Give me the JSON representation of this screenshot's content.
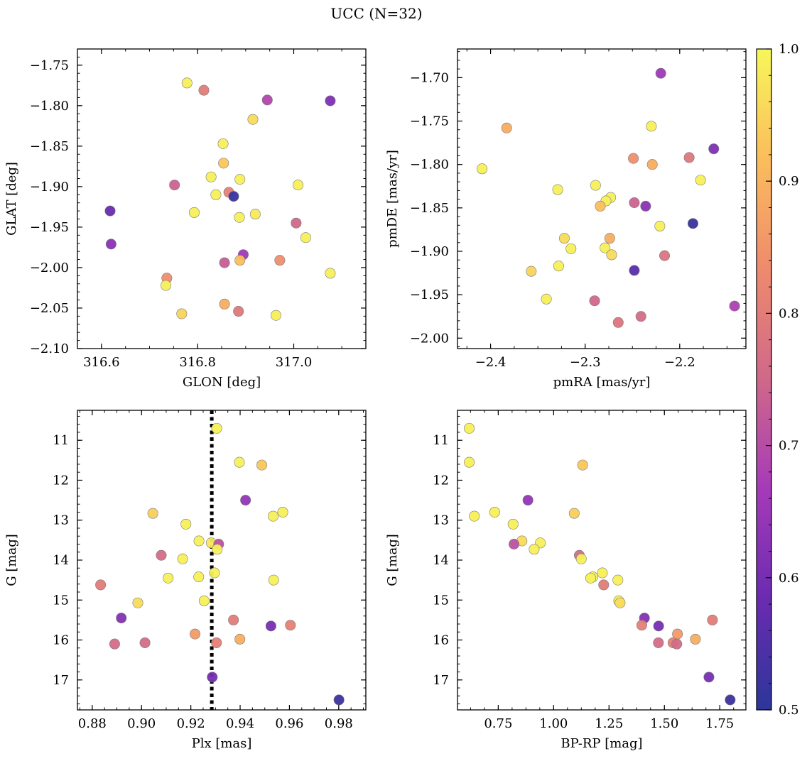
{
  "figure": {
    "title": "UCC (N=32)"
  },
  "colorbar": {
    "range": [
      0.5,
      1.0
    ],
    "ticks": [
      0.5,
      0.6,
      0.7,
      0.8,
      0.9,
      1.0
    ],
    "tick_labels": [
      "0.5",
      "0.6",
      "0.7",
      "0.8",
      "0.9",
      "1.0"
    ],
    "colormap": "plasma",
    "stops": [
      "#2c369a",
      "#6a2bb0",
      "#a53ab9",
      "#d0688a",
      "#ee8a6d",
      "#fbbd5c",
      "#f7f75a"
    ]
  },
  "chart_data": [
    {
      "type": "scatter",
      "xlabel": "GLON [deg]",
      "ylabel": "GLAT [deg]",
      "xlim": [
        316.55,
        317.15
      ],
      "ylim": [
        -2.1,
        -1.73
      ],
      "xticks": [
        316.6,
        316.8,
        317.0
      ],
      "xtick_labels": [
        "316.6",
        "316.8",
        "317.0"
      ],
      "yticks": [
        -1.75,
        -1.8,
        -1.85,
        -1.9,
        -1.95,
        -2.0,
        -2.05,
        -2.1
      ],
      "ytick_labels": [
        "−1.75",
        "−1.80",
        "−1.85",
        "−1.90",
        "−1.95",
        "−2.00",
        "−2.05",
        "−2.10"
      ],
      "y_inverted": false,
      "points": [
        {
          "x": 316.778,
          "y": -1.772,
          "c": 0.99
        },
        {
          "x": 316.813,
          "y": -1.781,
          "c": 0.8
        },
        {
          "x": 316.945,
          "y": -1.793,
          "c": 0.69
        },
        {
          "x": 317.076,
          "y": -1.794,
          "c": 0.61
        },
        {
          "x": 316.915,
          "y": -1.817,
          "c": 0.96
        },
        {
          "x": 316.853,
          "y": -1.847,
          "c": 0.99
        },
        {
          "x": 316.854,
          "y": -1.871,
          "c": 0.93
        },
        {
          "x": 316.828,
          "y": -1.888,
          "c": 0.99
        },
        {
          "x": 316.888,
          "y": -1.891,
          "c": 0.99
        },
        {
          "x": 316.752,
          "y": -1.898,
          "c": 0.74
        },
        {
          "x": 317.009,
          "y": -1.898,
          "c": 0.99
        },
        {
          "x": 316.865,
          "y": -1.907,
          "c": 0.81
        },
        {
          "x": 316.838,
          "y": -1.91,
          "c": 0.99
        },
        {
          "x": 316.875,
          "y": -1.912,
          "c": 0.52
        },
        {
          "x": 316.618,
          "y": -1.93,
          "c": 0.58
        },
        {
          "x": 316.793,
          "y": -1.932,
          "c": 0.99
        },
        {
          "x": 316.92,
          "y": -1.934,
          "c": 0.98
        },
        {
          "x": 316.887,
          "y": -1.938,
          "c": 0.99
        },
        {
          "x": 317.005,
          "y": -1.945,
          "c": 0.75
        },
        {
          "x": 317.025,
          "y": -1.963,
          "c": 0.99
        },
        {
          "x": 316.62,
          "y": -1.971,
          "c": 0.63
        },
        {
          "x": 316.895,
          "y": -1.984,
          "c": 0.66
        },
        {
          "x": 316.971,
          "y": -1.991,
          "c": 0.84
        },
        {
          "x": 316.888,
          "y": -1.991,
          "c": 0.92
        },
        {
          "x": 316.856,
          "y": -1.994,
          "c": 0.73
        },
        {
          "x": 316.736,
          "y": -2.013,
          "c": 0.84
        },
        {
          "x": 317.076,
          "y": -2.007,
          "c": 0.99
        },
        {
          "x": 316.734,
          "y": -2.022,
          "c": 0.99
        },
        {
          "x": 316.856,
          "y": -2.045,
          "c": 0.89
        },
        {
          "x": 316.885,
          "y": -2.054,
          "c": 0.79
        },
        {
          "x": 316.767,
          "y": -2.057,
          "c": 0.95
        },
        {
          "x": 316.963,
          "y": -2.059,
          "c": 0.99
        }
      ]
    },
    {
      "type": "scatter",
      "xlabel": "pmRA [mas/yr]",
      "ylabel": "pmDE [mas/yr]",
      "xlim": [
        -2.435,
        -2.13
      ],
      "ylim": [
        -2.012,
        -1.667
      ],
      "xticks": [
        -2.4,
        -2.3,
        -2.2
      ],
      "xtick_labels": [
        "−2.4",
        "−2.3",
        "−2.2"
      ],
      "yticks": [
        -1.7,
        -1.75,
        -1.8,
        -1.85,
        -1.9,
        -1.95,
        -2.0
      ],
      "ytick_labels": [
        "−1.70",
        "−1.75",
        "−1.80",
        "−1.85",
        "−1.90",
        "−1.95",
        "−2.00"
      ],
      "y_inverted": false,
      "points": [
        {
          "x": -2.22,
          "y": -1.695,
          "c": 0.66
        },
        {
          "x": -2.383,
          "y": -1.758,
          "c": 0.89
        },
        {
          "x": -2.23,
          "y": -1.756,
          "c": 0.99
        },
        {
          "x": -2.409,
          "y": -1.805,
          "c": 0.99
        },
        {
          "x": -2.164,
          "y": -1.782,
          "c": 0.61
        },
        {
          "x": -2.249,
          "y": -1.793,
          "c": 0.84
        },
        {
          "x": -2.19,
          "y": -1.792,
          "c": 0.79
        },
        {
          "x": -2.229,
          "y": -1.8,
          "c": 0.89
        },
        {
          "x": -2.178,
          "y": -1.818,
          "c": 0.99
        },
        {
          "x": -2.329,
          "y": -1.829,
          "c": 0.99
        },
        {
          "x": -2.289,
          "y": -1.824,
          "c": 0.99
        },
        {
          "x": -2.273,
          "y": -1.838,
          "c": 0.99
        },
        {
          "x": -2.278,
          "y": -1.842,
          "c": 0.99
        },
        {
          "x": -2.284,
          "y": -1.848,
          "c": 0.92
        },
        {
          "x": -2.248,
          "y": -1.844,
          "c": 0.74
        },
        {
          "x": -2.236,
          "y": -1.848,
          "c": 0.63
        },
        {
          "x": -2.186,
          "y": -1.868,
          "c": 0.52
        },
        {
          "x": -2.221,
          "y": -1.871,
          "c": 0.99
        },
        {
          "x": -2.322,
          "y": -1.885,
          "c": 0.96
        },
        {
          "x": -2.274,
          "y": -1.885,
          "c": 0.89
        },
        {
          "x": -2.315,
          "y": -1.897,
          "c": 0.99
        },
        {
          "x": -2.279,
          "y": -1.896,
          "c": 0.99
        },
        {
          "x": -2.272,
          "y": -1.904,
          "c": 0.96
        },
        {
          "x": -2.216,
          "y": -1.905,
          "c": 0.78
        },
        {
          "x": -2.328,
          "y": -1.917,
          "c": 0.99
        },
        {
          "x": -2.357,
          "y": -1.923,
          "c": 0.95
        },
        {
          "x": -2.248,
          "y": -1.922,
          "c": 0.56
        },
        {
          "x": -2.341,
          "y": -1.955,
          "c": 0.99
        },
        {
          "x": -2.29,
          "y": -1.957,
          "c": 0.75
        },
        {
          "x": -2.241,
          "y": -1.975,
          "c": 0.76
        },
        {
          "x": -2.265,
          "y": -1.982,
          "c": 0.78
        },
        {
          "x": -2.142,
          "y": -1.963,
          "c": 0.68
        }
      ]
    },
    {
      "type": "scatter",
      "xlabel": "Plx [mas]",
      "ylabel": "G [mag]",
      "xlim": [
        0.874,
        0.991
      ],
      "ylim": [
        17.75,
        10.25
      ],
      "xticks": [
        0.88,
        0.9,
        0.92,
        0.94,
        0.96,
        0.98
      ],
      "xtick_labels": [
        "0.88",
        "0.90",
        "0.92",
        "0.94",
        "0.96",
        "0.98"
      ],
      "yticks": [
        11,
        12,
        13,
        14,
        15,
        16,
        17
      ],
      "ytick_labels": [
        "11",
        "12",
        "13",
        "14",
        "15",
        "16",
        "17"
      ],
      "y_inverted": true,
      "vline": 0.9285,
      "points": [
        {
          "x": 0.9305,
          "y": 10.7,
          "c": 0.99
        },
        {
          "x": 0.9397,
          "y": 11.55,
          "c": 0.99
        },
        {
          "x": 0.9488,
          "y": 11.62,
          "c": 0.93
        },
        {
          "x": 0.9422,
          "y": 12.5,
          "c": 0.64
        },
        {
          "x": 0.9046,
          "y": 12.83,
          "c": 0.94
        },
        {
          "x": 0.9573,
          "y": 12.8,
          "c": 0.99
        },
        {
          "x": 0.9534,
          "y": 12.9,
          "c": 0.99
        },
        {
          "x": 0.918,
          "y": 13.1,
          "c": 0.99
        },
        {
          "x": 0.9233,
          "y": 13.52,
          "c": 0.99
        },
        {
          "x": 0.9283,
          "y": 13.57,
          "c": 0.98
        },
        {
          "x": 0.9313,
          "y": 13.6,
          "c": 0.71
        },
        {
          "x": 0.9307,
          "y": 13.73,
          "c": 0.99
        },
        {
          "x": 0.908,
          "y": 13.88,
          "c": 0.76
        },
        {
          "x": 0.9167,
          "y": 13.97,
          "c": 0.99
        },
        {
          "x": 0.9296,
          "y": 14.32,
          "c": 0.99
        },
        {
          "x": 0.9232,
          "y": 14.42,
          "c": 0.99
        },
        {
          "x": 0.9108,
          "y": 14.45,
          "c": 0.99
        },
        {
          "x": 0.9536,
          "y": 14.5,
          "c": 0.99
        },
        {
          "x": 0.8834,
          "y": 14.62,
          "c": 0.8
        },
        {
          "x": 0.9254,
          "y": 15.02,
          "c": 0.99
        },
        {
          "x": 0.8985,
          "y": 15.07,
          "c": 0.96
        },
        {
          "x": 0.8918,
          "y": 15.45,
          "c": 0.62
        },
        {
          "x": 0.9373,
          "y": 15.5,
          "c": 0.8
        },
        {
          "x": 0.9604,
          "y": 15.63,
          "c": 0.81
        },
        {
          "x": 0.9525,
          "y": 15.65,
          "c": 0.6
        },
        {
          "x": 0.9217,
          "y": 15.85,
          "c": 0.86
        },
        {
          "x": 0.9399,
          "y": 15.98,
          "c": 0.89
        },
        {
          "x": 0.8891,
          "y": 16.1,
          "c": 0.76
        },
        {
          "x": 0.9014,
          "y": 16.07,
          "c": 0.76
        },
        {
          "x": 0.9304,
          "y": 16.07,
          "c": 0.81
        },
        {
          "x": 0.9287,
          "y": 16.93,
          "c": 0.6
        },
        {
          "x": 0.9801,
          "y": 17.5,
          "c": 0.52
        }
      ]
    },
    {
      "type": "scatter",
      "xlabel": "BP-RP [mag]",
      "ylabel": "G [mag]",
      "xlim": [
        0.566,
        1.868
      ],
      "ylim": [
        17.75,
        10.25
      ],
      "xticks": [
        0.75,
        1.0,
        1.25,
        1.5,
        1.75
      ],
      "xtick_labels": [
        "0.75",
        "1.00",
        "1.25",
        "1.50",
        "1.75"
      ],
      "yticks": [
        11,
        12,
        13,
        14,
        15,
        16,
        17
      ],
      "ytick_labels": [
        "11",
        "12",
        "13",
        "14",
        "15",
        "16",
        "17"
      ],
      "y_inverted": true,
      "points": [
        {
          "x": 0.619,
          "y": 10.7,
          "c": 0.99
        },
        {
          "x": 0.619,
          "y": 11.55,
          "c": 0.99
        },
        {
          "x": 1.131,
          "y": 11.62,
          "c": 0.93
        },
        {
          "x": 0.884,
          "y": 12.5,
          "c": 0.64
        },
        {
          "x": 0.642,
          "y": 12.9,
          "c": 0.99
        },
        {
          "x": 0.734,
          "y": 12.8,
          "c": 0.99
        },
        {
          "x": 1.093,
          "y": 12.83,
          "c": 0.94
        },
        {
          "x": 0.817,
          "y": 13.1,
          "c": 0.99
        },
        {
          "x": 0.857,
          "y": 13.52,
          "c": 0.96
        },
        {
          "x": 0.94,
          "y": 13.57,
          "c": 0.99
        },
        {
          "x": 0.821,
          "y": 13.6,
          "c": 0.71
        },
        {
          "x": 0.912,
          "y": 13.73,
          "c": 0.99
        },
        {
          "x": 1.116,
          "y": 13.88,
          "c": 0.76
        },
        {
          "x": 1.125,
          "y": 13.97,
          "c": 0.99
        },
        {
          "x": 1.22,
          "y": 14.32,
          "c": 0.99
        },
        {
          "x": 1.177,
          "y": 14.42,
          "c": 0.99
        },
        {
          "x": 1.167,
          "y": 14.45,
          "c": 0.99
        },
        {
          "x": 1.29,
          "y": 14.5,
          "c": 0.99
        },
        {
          "x": 1.226,
          "y": 14.62,
          "c": 0.8
        },
        {
          "x": 1.294,
          "y": 15.02,
          "c": 0.99
        },
        {
          "x": 1.3,
          "y": 15.07,
          "c": 0.96
        },
        {
          "x": 1.41,
          "y": 15.45,
          "c": 0.62
        },
        {
          "x": 1.717,
          "y": 15.5,
          "c": 0.8
        },
        {
          "x": 1.398,
          "y": 15.63,
          "c": 0.81
        },
        {
          "x": 1.474,
          "y": 15.65,
          "c": 0.6
        },
        {
          "x": 1.559,
          "y": 15.85,
          "c": 0.86
        },
        {
          "x": 1.64,
          "y": 15.98,
          "c": 0.89
        },
        {
          "x": 1.473,
          "y": 16.07,
          "c": 0.76
        },
        {
          "x": 1.539,
          "y": 16.07,
          "c": 0.81
        },
        {
          "x": 1.556,
          "y": 16.1,
          "c": 0.76
        },
        {
          "x": 1.701,
          "y": 16.93,
          "c": 0.6
        },
        {
          "x": 1.797,
          "y": 17.5,
          "c": 0.52
        }
      ]
    }
  ]
}
